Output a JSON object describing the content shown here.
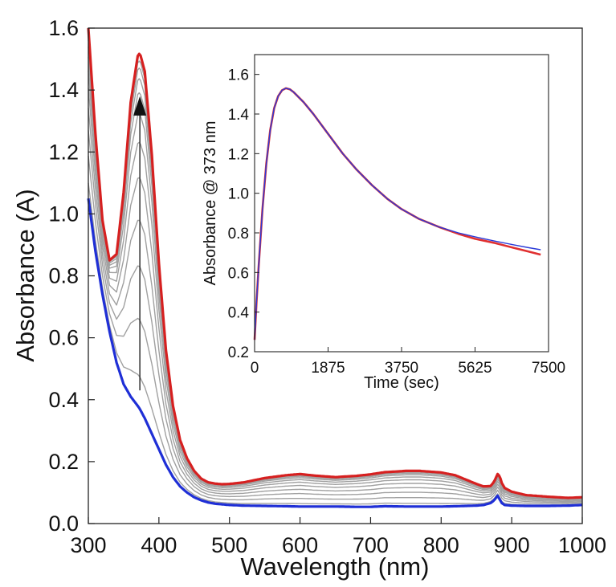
{
  "chart_data": [
    {
      "type": "line",
      "title": "",
      "xlabel": "Wavelength (nm)",
      "ylabel": "Absorbance (A)",
      "xlim": [
        300,
        1000
      ],
      "ylim": [
        0.0,
        1.6
      ],
      "grid": false,
      "legend": "none",
      "x_ticks": [
        "300",
        "400",
        "500",
        "600",
        "700",
        "800",
        "900",
        "1000"
      ],
      "y_ticks": [
        "0.0",
        "0.2",
        "0.4",
        "0.6",
        "0.8",
        "1.0",
        "1.2",
        "1.4",
        "1.6"
      ],
      "arrow": {
        "x": 373,
        "from": 0.43,
        "to": 1.38
      },
      "spectral_shape": {
        "x": [
          300,
          310,
          320,
          330,
          340,
          350,
          360,
          370,
          373,
          380,
          390,
          400,
          410,
          420,
          430,
          440,
          450,
          460,
          470,
          480,
          490,
          500,
          520,
          550,
          580,
          600,
          620,
          650,
          680,
          700,
          720,
          750,
          770,
          800,
          820,
          850,
          860,
          870,
          875,
          880,
          883,
          886,
          890,
          900,
          920,
          950,
          980,
          1000
        ],
        "baseline": [
          1.05,
          0.88,
          0.74,
          0.62,
          0.52,
          0.45,
          0.41,
          0.38,
          0.37,
          0.34,
          0.29,
          0.24,
          0.19,
          0.15,
          0.12,
          0.1,
          0.085,
          0.075,
          0.068,
          0.064,
          0.062,
          0.06,
          0.058,
          0.057,
          0.056,
          0.055,
          0.055,
          0.055,
          0.054,
          0.054,
          0.056,
          0.055,
          0.055,
          0.055,
          0.056,
          0.058,
          0.06,
          0.066,
          0.075,
          0.09,
          0.078,
          0.066,
          0.06,
          0.058,
          0.057,
          0.057,
          0.058,
          0.06
        ],
        "delta": [
          0.55,
          0.38,
          0.24,
          0.23,
          0.35,
          0.62,
          0.95,
          1.13,
          1.15,
          1.12,
          0.9,
          0.6,
          0.37,
          0.23,
          0.15,
          0.11,
          0.085,
          0.07,
          0.065,
          0.065,
          0.065,
          0.068,
          0.075,
          0.09,
          0.1,
          0.105,
          0.1,
          0.095,
          0.1,
          0.105,
          0.11,
          0.115,
          0.115,
          0.11,
          0.1,
          0.07,
          0.06,
          0.055,
          0.06,
          0.07,
          0.075,
          0.065,
          0.055,
          0.045,
          0.035,
          0.03,
          0.025,
          0.025
        ]
      },
      "series": [
        {
          "role": "initial",
          "color": "#1f2fd6",
          "scale": 0.0
        },
        {
          "role": "intermediate",
          "color": "#a0a0a0",
          "scale": 0.09
        },
        {
          "role": "intermediate",
          "color": "#a0a0a0",
          "scale": 0.25
        },
        {
          "role": "intermediate",
          "color": "#a0a0a0",
          "scale": 0.4
        },
        {
          "role": "intermediate",
          "color": "#a0a0a0",
          "scale": 0.53
        },
        {
          "role": "intermediate",
          "color": "#a0a0a0",
          "scale": 0.65
        },
        {
          "role": "intermediate",
          "color": "#a0a0a0",
          "scale": 0.75
        },
        {
          "role": "intermediate",
          "color": "#a0a0a0",
          "scale": 0.83
        },
        {
          "role": "intermediate",
          "color": "#a0a0a0",
          "scale": 0.89
        },
        {
          "role": "intermediate",
          "color": "#a0a0a0",
          "scale": 0.93
        },
        {
          "role": "intermediate",
          "color": "#a0a0a0",
          "scale": 0.96
        },
        {
          "role": "intermediate",
          "color": "#a0a0a0",
          "scale": 0.98
        },
        {
          "role": "final",
          "color": "#d62020",
          "scale": 1.0
        }
      ]
    },
    {
      "type": "line",
      "title": "",
      "xlabel": "Time (sec)",
      "ylabel": "Absorbance @ 373 nm",
      "xlim": [
        0,
        7500
      ],
      "ylim": [
        0.2,
        1.7
      ],
      "grid": false,
      "legend": "none",
      "x_ticks": [
        "0",
        "1875",
        "3750",
        "5625",
        "7500"
      ],
      "y_ticks": [
        "0.2",
        "0.4",
        "0.6",
        "0.8",
        "1.0",
        "1.2",
        "1.4",
        "1.6"
      ],
      "series": [
        {
          "role": "data",
          "color": "#e03030",
          "x": [
            0,
            50,
            100,
            200,
            300,
            400,
            500,
            600,
            700,
            800,
            900,
            1000,
            1250,
            1500,
            1875,
            2250,
            2600,
            3000,
            3400,
            3750,
            4200,
            4700,
            5200,
            5625,
            6100,
            6600,
            7000,
            7300
          ],
          "y": [
            0.26,
            0.45,
            0.62,
            0.92,
            1.15,
            1.32,
            1.43,
            1.49,
            1.52,
            1.53,
            1.525,
            1.51,
            1.46,
            1.4,
            1.3,
            1.2,
            1.12,
            1.04,
            0.97,
            0.92,
            0.87,
            0.83,
            0.795,
            0.77,
            0.75,
            0.725,
            0.705,
            0.69
          ]
        },
        {
          "role": "fit",
          "color": "#2a3ad8",
          "x": [
            0,
            50,
            100,
            200,
            300,
            400,
            500,
            600,
            700,
            800,
            900,
            1000,
            1250,
            1500,
            1875,
            2250,
            2600,
            3000,
            3400,
            3750,
            4200,
            4700,
            5200,
            5625,
            6100,
            6600,
            7000,
            7300
          ],
          "y": [
            0.26,
            0.45,
            0.62,
            0.92,
            1.15,
            1.32,
            1.43,
            1.49,
            1.52,
            1.53,
            1.525,
            1.51,
            1.46,
            1.4,
            1.3,
            1.2,
            1.12,
            1.04,
            0.97,
            0.92,
            0.87,
            0.83,
            0.8,
            0.78,
            0.76,
            0.74,
            0.725,
            0.715
          ]
        }
      ]
    }
  ]
}
